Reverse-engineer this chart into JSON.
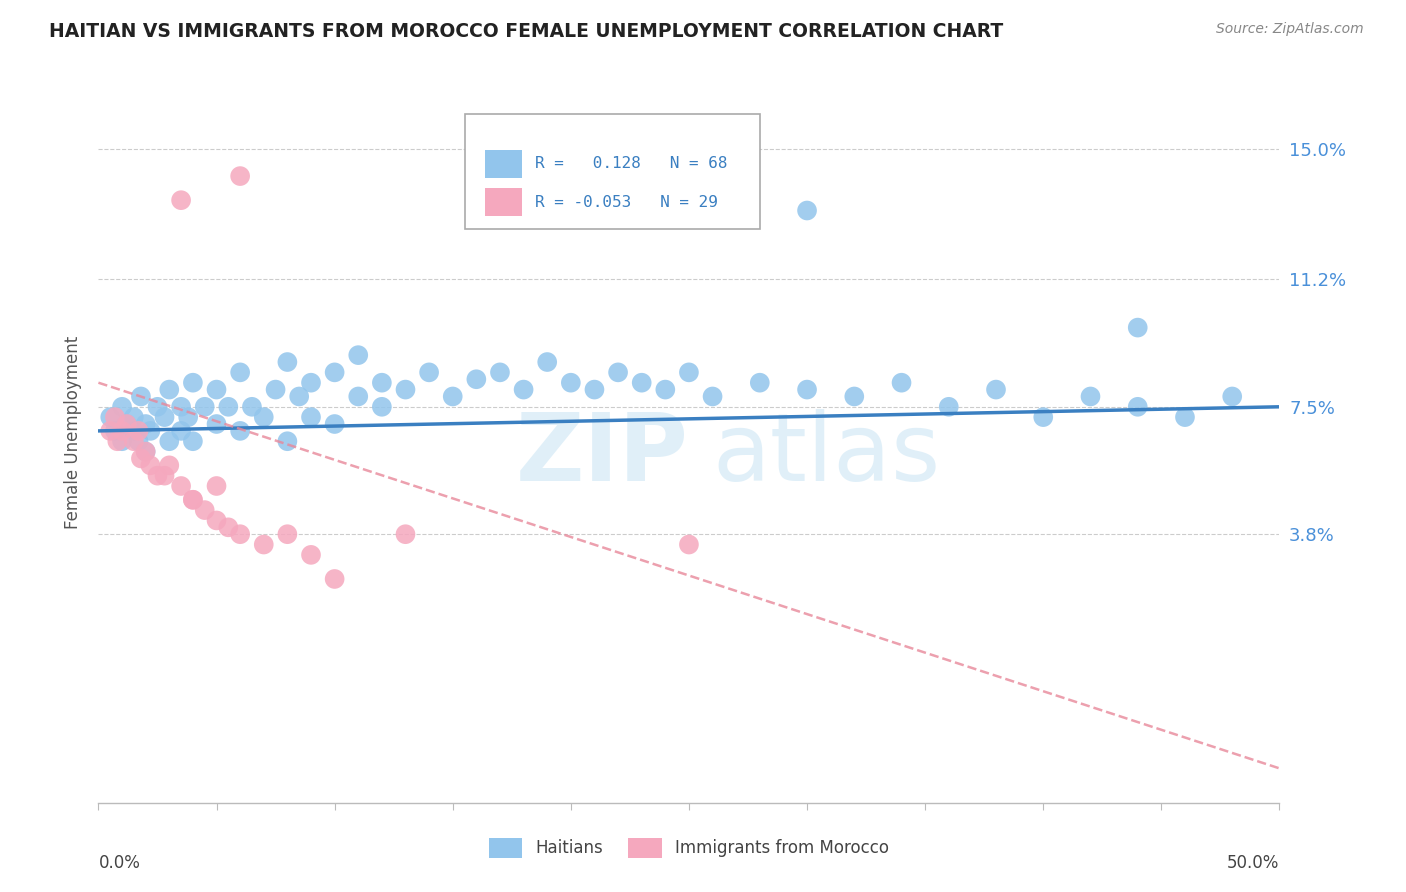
{
  "title": "HAITIAN VS IMMIGRANTS FROM MOROCCO FEMALE UNEMPLOYMENT CORRELATION CHART",
  "source": "Source: ZipAtlas.com",
  "ylabel": "Female Unemployment",
  "color_haitian": "#92C5EC",
  "color_morocco": "#F5A8BE",
  "color_line_haitian": "#3A7FC1",
  "color_line_morocco": "#E8889A",
  "ytick_values": [
    0.038,
    0.075,
    0.112,
    0.15
  ],
  "ytick_labels": [
    "3.8%",
    "7.5%",
    "11.2%",
    "15.0%"
  ],
  "xlim": [
    0.0,
    0.5
  ],
  "ylim": [
    -0.04,
    0.175
  ],
  "haitian_x": [
    0.005,
    0.007,
    0.01,
    0.01,
    0.012,
    0.015,
    0.015,
    0.017,
    0.018,
    0.02,
    0.02,
    0.022,
    0.025,
    0.028,
    0.03,
    0.03,
    0.035,
    0.035,
    0.038,
    0.04,
    0.04,
    0.045,
    0.05,
    0.05,
    0.055,
    0.06,
    0.06,
    0.065,
    0.07,
    0.075,
    0.08,
    0.08,
    0.085,
    0.09,
    0.09,
    0.1,
    0.1,
    0.11,
    0.11,
    0.12,
    0.12,
    0.13,
    0.14,
    0.15,
    0.16,
    0.17,
    0.18,
    0.19,
    0.2,
    0.21,
    0.22,
    0.23,
    0.24,
    0.25,
    0.26,
    0.28,
    0.3,
    0.32,
    0.34,
    0.36,
    0.38,
    0.4,
    0.42,
    0.44,
    0.46,
    0.48,
    0.3,
    0.44
  ],
  "haitian_y": [
    0.072,
    0.068,
    0.075,
    0.065,
    0.07,
    0.068,
    0.072,
    0.065,
    0.078,
    0.062,
    0.07,
    0.068,
    0.075,
    0.072,
    0.065,
    0.08,
    0.068,
    0.075,
    0.072,
    0.065,
    0.082,
    0.075,
    0.07,
    0.08,
    0.075,
    0.068,
    0.085,
    0.075,
    0.072,
    0.08,
    0.065,
    0.088,
    0.078,
    0.072,
    0.082,
    0.07,
    0.085,
    0.078,
    0.09,
    0.075,
    0.082,
    0.08,
    0.085,
    0.078,
    0.083,
    0.085,
    0.08,
    0.088,
    0.082,
    0.08,
    0.085,
    0.082,
    0.08,
    0.085,
    0.078,
    0.082,
    0.08,
    0.078,
    0.082,
    0.075,
    0.08,
    0.072,
    0.078,
    0.075,
    0.072,
    0.078,
    0.132,
    0.098
  ],
  "morocco_x": [
    0.005,
    0.007,
    0.008,
    0.01,
    0.012,
    0.015,
    0.017,
    0.018,
    0.02,
    0.022,
    0.025,
    0.028,
    0.03,
    0.035,
    0.04,
    0.045,
    0.05,
    0.055,
    0.06,
    0.07,
    0.08,
    0.09,
    0.1,
    0.13,
    0.25,
    0.035,
    0.06,
    0.04,
    0.05
  ],
  "morocco_y": [
    0.068,
    0.072,
    0.065,
    0.068,
    0.07,
    0.065,
    0.068,
    0.06,
    0.062,
    0.058,
    0.055,
    0.055,
    0.058,
    0.052,
    0.048,
    0.045,
    0.042,
    0.04,
    0.038,
    0.035,
    0.038,
    0.032,
    0.025,
    0.038,
    0.035,
    0.135,
    0.142,
    0.048,
    0.052
  ]
}
